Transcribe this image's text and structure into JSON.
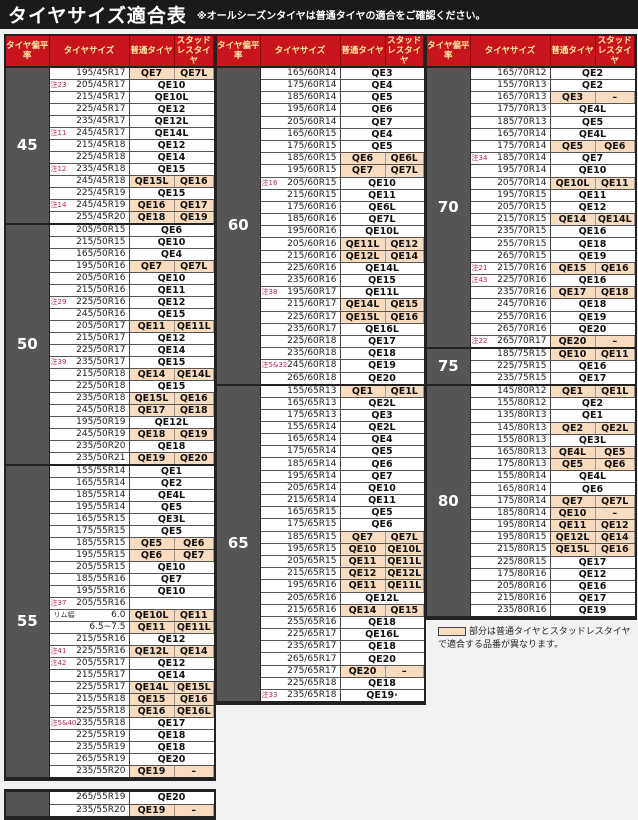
{
  "header": {
    "title": "タイヤサイズ適合表",
    "subtitle": "※オールシーズンタイヤは普通タイヤの適合をご確認ください。"
  },
  "columns_header": {
    "aspect": "タイヤ偏平率",
    "size": "タイヤサイズ",
    "normal": "普通タイヤ",
    "studless": "スタッドレスタイヤ"
  },
  "colors": {
    "header_red": "#c8141c",
    "highlight": "#f9dcc0",
    "group_gray": "#555555"
  },
  "legend": "部分は普通タイヤとスタッドレスタイヤで適合する品番が異なります。",
  "columns": [
    [
      {
        "aspect": "45",
        "rows": [
          [
            "",
            "195/45R17",
            "QE7",
            "QE7L"
          ],
          [
            "注23",
            "205/45R17",
            "QE10",
            null
          ],
          [
            "",
            "215/45R17",
            "QE10L",
            null
          ],
          [
            "",
            "225/45R17",
            "QE12",
            null
          ],
          [
            "",
            "235/45R17",
            "QE12L",
            null
          ],
          [
            "注11",
            "245/45R17",
            "QE14L",
            null
          ],
          [
            "",
            "215/45R18",
            "QE12",
            null
          ],
          [
            "",
            "225/45R18",
            "QE14",
            null
          ],
          [
            "注12",
            "235/45R18",
            "QE15",
            null
          ],
          [
            "",
            "245/45R18",
            "QE15L",
            "QE16"
          ],
          [
            "",
            "225/45R19",
            "QE15",
            null
          ],
          [
            "注14",
            "245/45R19",
            "QE16",
            "QE17"
          ],
          [
            "",
            "255/45R20",
            "QE18",
            "QE19"
          ]
        ]
      },
      {
        "aspect": "50",
        "rows": [
          [
            "",
            "205/50R15",
            "QE6",
            null
          ],
          [
            "",
            "215/50R15",
            "QE10",
            null
          ],
          [
            "",
            "165/50R16",
            "QE4",
            null
          ],
          [
            "",
            "195/50R16",
            "QE7",
            "QE7L"
          ],
          [
            "",
            "205/50R16",
            "QE10",
            null
          ],
          [
            "",
            "215/50R16",
            "QE11",
            null
          ],
          [
            "注29",
            "225/50R16",
            "QE12",
            null
          ],
          [
            "",
            "245/50R16",
            "QE15",
            null
          ],
          [
            "",
            "205/50R17",
            "QE11",
            "QE11L"
          ],
          [
            "",
            "215/50R17",
            "QE12",
            null
          ],
          [
            "",
            "225/50R17",
            "QE14",
            null
          ],
          [
            "注39",
            "235/50R17",
            "QE15",
            null
          ],
          [
            "",
            "215/50R18",
            "QE14",
            "QE14L"
          ],
          [
            "",
            "225/50R18",
            "QE15",
            null
          ],
          [
            "",
            "235/50R18",
            "QE15L",
            "QE16"
          ],
          [
            "",
            "245/50R18",
            "QE17",
            "QE18"
          ],
          [
            "",
            "195/50R19",
            "QE12L",
            null
          ],
          [
            "",
            "245/50R19",
            "QE18",
            "QE19"
          ],
          [
            "",
            "235/50R20",
            "QE18",
            null
          ],
          [
            "",
            "235/50R21",
            "QE19",
            "QE20"
          ]
        ]
      },
      {
        "aspect": "55",
        "rows": [
          [
            "",
            "155/55R14",
            "QE1",
            null
          ],
          [
            "",
            "165/55R14",
            "QE2",
            null
          ],
          [
            "",
            "185/55R14",
            "QE4L",
            null
          ],
          [
            "",
            "195/55R14",
            "QE5",
            null
          ],
          [
            "",
            "165/55R15",
            "QE3L",
            null
          ],
          [
            "",
            "175/55R15",
            "QE5",
            null
          ],
          [
            "",
            "185/55R15",
            "QE5",
            "QE6"
          ],
          [
            "",
            "195/55R15",
            "QE6",
            "QE7"
          ],
          [
            "",
            "205/55R15",
            "QE10",
            null
          ],
          [
            "",
            "185/55R16",
            "QE7",
            null
          ],
          [
            "",
            "195/55R16",
            "QE10",
            null
          ],
          [
            "注37",
            "205/55R16",
            "",
            null
          ],
          [
            "リム幅",
            "6.0",
            "QE10L",
            "QE11"
          ],
          [
            "",
            "6.5~7.5",
            "QE11",
            "QE11L"
          ],
          [
            "",
            "215/55R16",
            "QE12",
            null
          ],
          [
            "注41",
            "225/55R16",
            "QE12L",
            "QE14"
          ],
          [
            "注42",
            "205/55R17",
            "QE12",
            null
          ],
          [
            "",
            "215/55R17",
            "QE14",
            null
          ],
          [
            "",
            "225/55R17",
            "QE14L",
            "QE15L"
          ],
          [
            "",
            "215/55R18",
            "QE15",
            "QE16"
          ],
          [
            "",
            "225/55R18",
            "QE16",
            "QE16L"
          ],
          [
            "注5&40",
            "235/55R18",
            "QE17",
            null
          ],
          [
            "",
            "225/55R19",
            "QE18",
            null
          ],
          [
            "",
            "235/55R19",
            "QE18",
            null
          ],
          [
            "",
            "265/55R19",
            "QE20",
            null
          ],
          [
            "",
            "235/55R20",
            "QE19",
            "–"
          ]
        ]
      }
    ],
    [
      {
        "aspect": "60",
        "rows": [
          [
            "",
            "165/60R14",
            "QE3",
            null
          ],
          [
            "",
            "175/60R14",
            "QE4",
            null
          ],
          [
            "",
            "185/60R14",
            "QE5",
            null
          ],
          [
            "",
            "195/60R14",
            "QE6",
            null
          ],
          [
            "",
            "205/60R14",
            "QE7",
            null
          ],
          [
            "",
            "165/60R15",
            "QE4",
            null
          ],
          [
            "",
            "175/60R15",
            "QE5",
            null
          ],
          [
            "",
            "185/60R15",
            "QE6",
            "QE6L"
          ],
          [
            "",
            "195/60R15",
            "QE7",
            "QE7L"
          ],
          [
            "注16",
            "205/60R15",
            "QE10",
            null
          ],
          [
            "",
            "215/60R15",
            "QE11",
            null
          ],
          [
            "",
            "175/60R16",
            "QE6L",
            null
          ],
          [
            "",
            "185/60R16",
            "QE7L",
            null
          ],
          [
            "",
            "195/60R16",
            "QE10L",
            null
          ],
          [
            "",
            "205/60R16",
            "QE11L",
            "QE12"
          ],
          [
            "",
            "215/60R16",
            "QE12L",
            "QE14"
          ],
          [
            "",
            "225/60R16",
            "QE14L",
            null
          ],
          [
            "",
            "235/60R16",
            "QE15",
            null
          ],
          [
            "注38",
            "195/60R17",
            "QE11L",
            null
          ],
          [
            "",
            "215/60R17",
            "QE14L",
            "QE15"
          ],
          [
            "",
            "225/60R17",
            "QE15L",
            "QE16"
          ],
          [
            "",
            "235/60R17",
            "QE16L",
            null
          ],
          [
            "",
            "225/60R18",
            "QE17",
            null
          ],
          [
            "",
            "235/60R18",
            "QE18",
            null
          ],
          [
            "注5&32",
            "245/60R18",
            "QE19",
            null
          ],
          [
            "",
            "265/60R18",
            "QE20",
            null
          ]
        ]
      },
      {
        "aspect": "65",
        "rows": [
          [
            "",
            "155/65R13",
            "QE1",
            "QE1L"
          ],
          [
            "",
            "165/65R13",
            "QE2L",
            null
          ],
          [
            "",
            "175/65R13",
            "QE3",
            null
          ],
          [
            "",
            "155/65R14",
            "QE2L",
            null
          ],
          [
            "",
            "165/65R14",
            "QE4",
            null
          ],
          [
            "",
            "175/65R14",
            "QE5",
            null
          ],
          [
            "",
            "185/65R14",
            "QE6",
            null
          ],
          [
            "",
            "195/65R14",
            "QE7",
            null
          ],
          [
            "",
            "205/65R14",
            "QE10",
            null
          ],
          [
            "",
            "215/65R14",
            "QE11",
            null
          ],
          [
            "",
            "165/65R15",
            "QE5",
            null
          ],
          [
            "",
            "175/65R15",
            "QE6",
            null
          ],
          [
            "",
            "185/65R15",
            "QE7",
            "QE7L"
          ],
          [
            "",
            "195/65R15",
            "QE10",
            "QE10L"
          ],
          [
            "",
            "205/65R15",
            "QE11",
            "QE11L"
          ],
          [
            "",
            "215/65R15",
            "QE12",
            "QE12L"
          ],
          [
            "",
            "195/65R16",
            "QE11",
            "QE11L"
          ],
          [
            "",
            "205/65R16",
            "QE12L",
            null
          ],
          [
            "",
            "215/65R16",
            "QE14",
            "QE15"
          ],
          [
            "",
            "255/65R16",
            "QE18",
            null
          ],
          [
            "",
            "225/65R17",
            "QE16L",
            null
          ],
          [
            "",
            "235/65R17",
            "QE18",
            null
          ],
          [
            "",
            "265/65R17",
            "QE20",
            null
          ],
          [
            "",
            "275/65R17",
            "QE20",
            "–"
          ],
          [
            "",
            "225/65R18",
            "QE18",
            null
          ],
          [
            "注33",
            "235/65R18",
            "QE19·",
            null
          ]
        ]
      }
    ],
    [
      {
        "aspect": "70",
        "rows": [
          [
            "",
            "165/70R12",
            "QE2",
            null
          ],
          [
            "",
            "155/70R13",
            "QE2",
            null
          ],
          [
            "",
            "165/70R13",
            "QE3",
            "–"
          ],
          [
            "",
            "175/70R13",
            "QE4L",
            null
          ],
          [
            "",
            "185/70R13",
            "QE5",
            null
          ],
          [
            "",
            "165/70R14",
            "QE4L",
            null
          ],
          [
            "",
            "175/70R14",
            "QE5",
            "QE6"
          ],
          [
            "注34",
            "185/70R14",
            "QE7",
            null
          ],
          [
            "",
            "195/70R14",
            "QE10",
            null
          ],
          [
            "",
            "205/70R14",
            "QE10L",
            "QE11"
          ],
          [
            "",
            "195/70R15",
            "QE11",
            null
          ],
          [
            "",
            "205/70R15",
            "QE12",
            null
          ],
          [
            "",
            "215/70R15",
            "QE14",
            "QE14L"
          ],
          [
            "",
            "235/70R15",
            "QE16",
            null
          ],
          [
            "",
            "255/70R15",
            "QE18",
            null
          ],
          [
            "",
            "265/70R15",
            "QE19",
            null
          ],
          [
            "注21",
            "215/70R16",
            "QE15",
            "QE16"
          ],
          [
            "注43",
            "225/70R16",
            "QE16",
            null
          ],
          [
            "",
            "235/70R16",
            "QE17",
            "QE18"
          ],
          [
            "",
            "245/70R16",
            "QE18",
            null
          ],
          [
            "",
            "255/70R16",
            "QE19",
            null
          ],
          [
            "",
            "265/70R16",
            "QE20",
            null
          ],
          [
            "注22",
            "265/70R17",
            "QE20",
            "–"
          ]
        ]
      },
      {
        "aspect": "75",
        "rows": [
          [
            "",
            "185/75R15",
            "QE10",
            "QE11"
          ],
          [
            "",
            "225/75R15",
            "QE16",
            null
          ],
          [
            "",
            "235/75R15",
            "QE17",
            null
          ]
        ]
      },
      {
        "aspect": "80",
        "rows": [
          [
            "",
            "145/80R12",
            "QE1",
            "QE1L"
          ],
          [
            "",
            "155/80R12",
            "QE2",
            null
          ],
          [
            "",
            "135/80R13",
            "QE1",
            null
          ],
          [
            "",
            "145/80R13",
            "QE2",
            "QE2L"
          ],
          [
            "",
            "155/80R13",
            "QE3L",
            null
          ],
          [
            "",
            "165/80R13",
            "QE4L",
            "QE5"
          ],
          [
            "",
            "175/80R13",
            "QE5",
            "QE6"
          ],
          [
            "",
            "155/80R14",
            "QE4L",
            null
          ],
          [
            "",
            "165/80R14",
            "QE6",
            null
          ],
          [
            "",
            "175/80R14",
            "QE7",
            "QE7L"
          ],
          [
            "",
            "185/80R14",
            "QE10",
            "–"
          ],
          [
            "",
            "195/80R14",
            "QE11",
            "QE12"
          ],
          [
            "",
            "195/80R15",
            "QE12L",
            "QE14"
          ],
          [
            "",
            "215/80R15",
            "QE15L",
            "QE16"
          ],
          [
            "",
            "225/80R15",
            "QE17",
            null
          ],
          [
            "",
            "175/80R16",
            "QE12",
            null
          ],
          [
            "",
            "205/80R16",
            "QE16",
            null
          ],
          [
            "",
            "215/80R16",
            "QE17",
            null
          ],
          [
            "",
            "235/80R16",
            "QE19",
            null
          ]
        ]
      }
    ]
  ],
  "extra_block": {
    "aspect": "",
    "rows": [
      [
        "",
        "265/55R19",
        "QE20",
        null
      ],
      [
        "",
        "235/55R20",
        "QE19",
        "–"
      ]
    ]
  }
}
